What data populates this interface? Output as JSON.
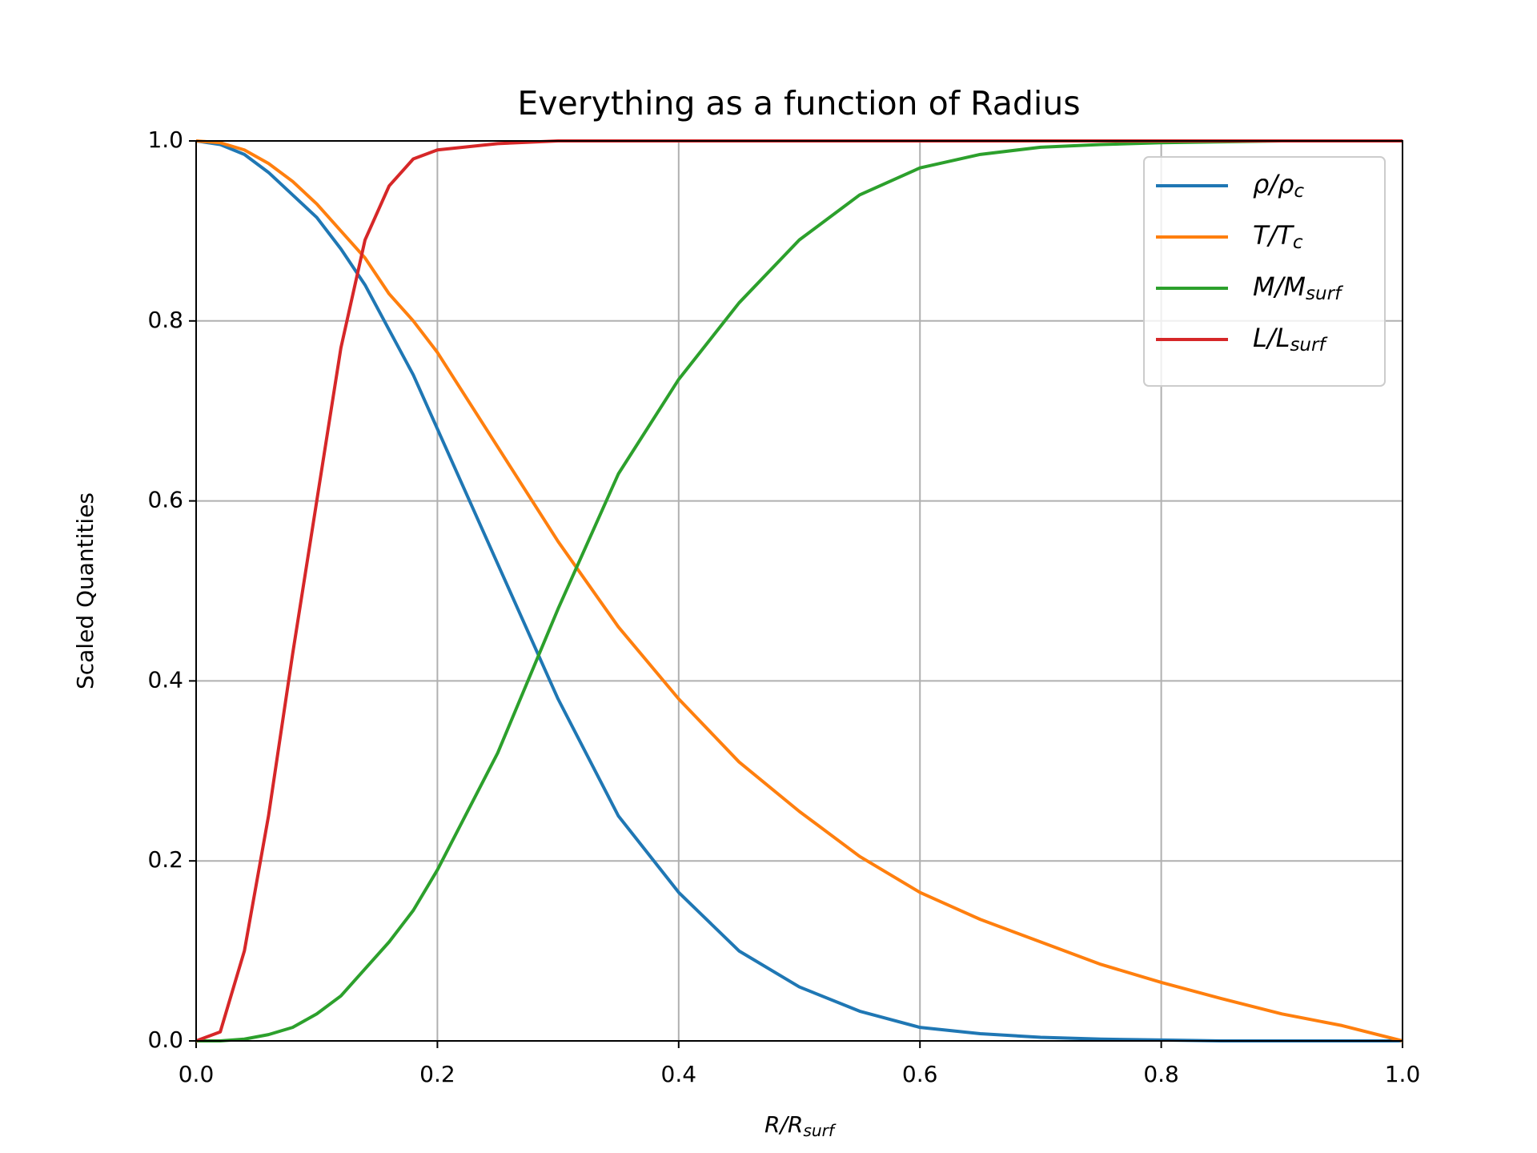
{
  "chart_data": {
    "type": "line",
    "title": "Everything as a function of Radius",
    "xlabel": "R/Rsurf",
    "ylabel": "Scaled Quantities",
    "x": [
      0,
      0.02,
      0.04,
      0.06,
      0.08,
      0.1,
      0.12,
      0.14,
      0.16,
      0.18,
      0.2,
      0.25,
      0.3,
      0.35,
      0.4,
      0.45,
      0.5,
      0.55,
      0.6,
      0.65,
      0.7,
      0.75,
      0.8,
      0.85,
      0.9,
      0.95,
      1.0
    ],
    "series": [
      {
        "name": "ρ/ρc",
        "color": "#1f77b4",
        "values": [
          1,
          0.996,
          0.985,
          0.965,
          0.94,
          0.915,
          0.88,
          0.84,
          0.79,
          0.74,
          0.68,
          0.53,
          0.38,
          0.25,
          0.165,
          0.1,
          0.06,
          0.033,
          0.015,
          0.008,
          0.004,
          0.002,
          0.001,
          0,
          0,
          0,
          0
        ]
      },
      {
        "name": "T/Tc",
        "color": "#ff7f0e",
        "values": [
          1,
          0.998,
          0.99,
          0.975,
          0.955,
          0.93,
          0.9,
          0.87,
          0.83,
          0.8,
          0.765,
          0.66,
          0.555,
          0.46,
          0.38,
          0.31,
          0.255,
          0.205,
          0.165,
          0.135,
          0.11,
          0.085,
          0.065,
          0.047,
          0.03,
          0.017,
          0
        ]
      },
      {
        "name": "M/Msurf",
        "color": "#2ca02c",
        "values": [
          0,
          0,
          0.002,
          0.007,
          0.015,
          0.03,
          0.05,
          0.08,
          0.11,
          0.145,
          0.19,
          0.32,
          0.48,
          0.63,
          0.735,
          0.82,
          0.89,
          0.94,
          0.97,
          0.985,
          0.993,
          0.996,
          0.998,
          0.999,
          1,
          1,
          1
        ]
      },
      {
        "name": "L/Lsurf",
        "color": "#d62728",
        "values": [
          0,
          0.01,
          0.1,
          0.25,
          0.43,
          0.6,
          0.77,
          0.89,
          0.95,
          0.98,
          0.99,
          0.997,
          1,
          1,
          1,
          1,
          1,
          1,
          1,
          1,
          1,
          1,
          1,
          1,
          1,
          1,
          1
        ]
      }
    ],
    "xlim": [
      0,
      1.0
    ],
    "ylim": [
      0,
      1.0
    ],
    "xticks": [
      {
        "value": 0,
        "label": "0.0"
      },
      0.2,
      0.4,
      0.6,
      0.8,
      {
        "value": 1,
        "label": "1.0"
      }
    ],
    "yticks": [
      {
        "value": 0,
        "label": "0.0"
      },
      0.2,
      0.4,
      0.6,
      0.8,
      {
        "value": 1,
        "label": "1.0"
      }
    ],
    "grid": true,
    "legend": "upper right"
  }
}
